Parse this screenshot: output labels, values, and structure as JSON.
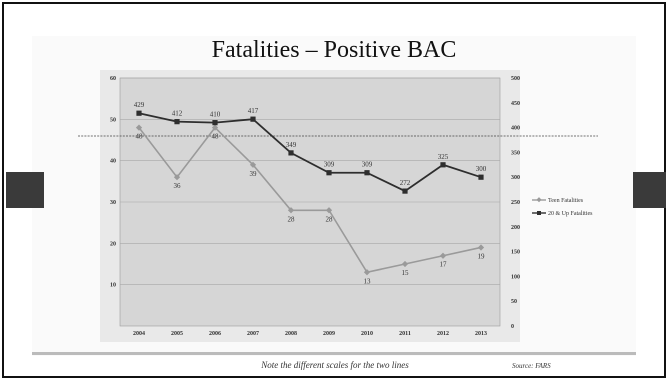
{
  "slide": {
    "title": "Fatalities – Positive BAC",
    "caption": "Note the different scales for the two lines",
    "source": "Source: FARS"
  },
  "colors": {
    "plot_bg": "#d6d6d6",
    "gridline": "#a8a8a8",
    "teen_series": "#9a9a9a",
    "adult_series": "#2e2e2e",
    "tabs": "#3a3a3a"
  },
  "chart_data": {
    "type": "line",
    "categories": [
      "2004",
      "2005",
      "2006",
      "2007",
      "2008",
      "2009",
      "2010",
      "2011",
      "2012",
      "2013"
    ],
    "title": "",
    "xlabel": "",
    "ylabel": "",
    "ylim": [
      0,
      60
    ],
    "y_ticks": [
      10,
      20,
      30,
      40,
      50,
      60
    ],
    "y2lim": [
      0,
      500
    ],
    "y2_ticks": [
      0,
      50,
      100,
      150,
      200,
      250,
      300,
      350,
      400,
      450,
      500
    ],
    "grid": true,
    "legend_position": "right",
    "series": [
      {
        "name": "Teen Fatalities",
        "axis": "left",
        "marker": "diamond",
        "values": [
          48,
          36,
          48,
          39,
          28,
          28,
          13,
          15,
          17,
          19
        ]
      },
      {
        "name": "20 & Up Fatalities",
        "axis": "right",
        "marker": "square",
        "values": [
          429,
          412,
          410,
          417,
          349,
          309,
          309,
          272,
          325,
          300
        ]
      }
    ]
  }
}
